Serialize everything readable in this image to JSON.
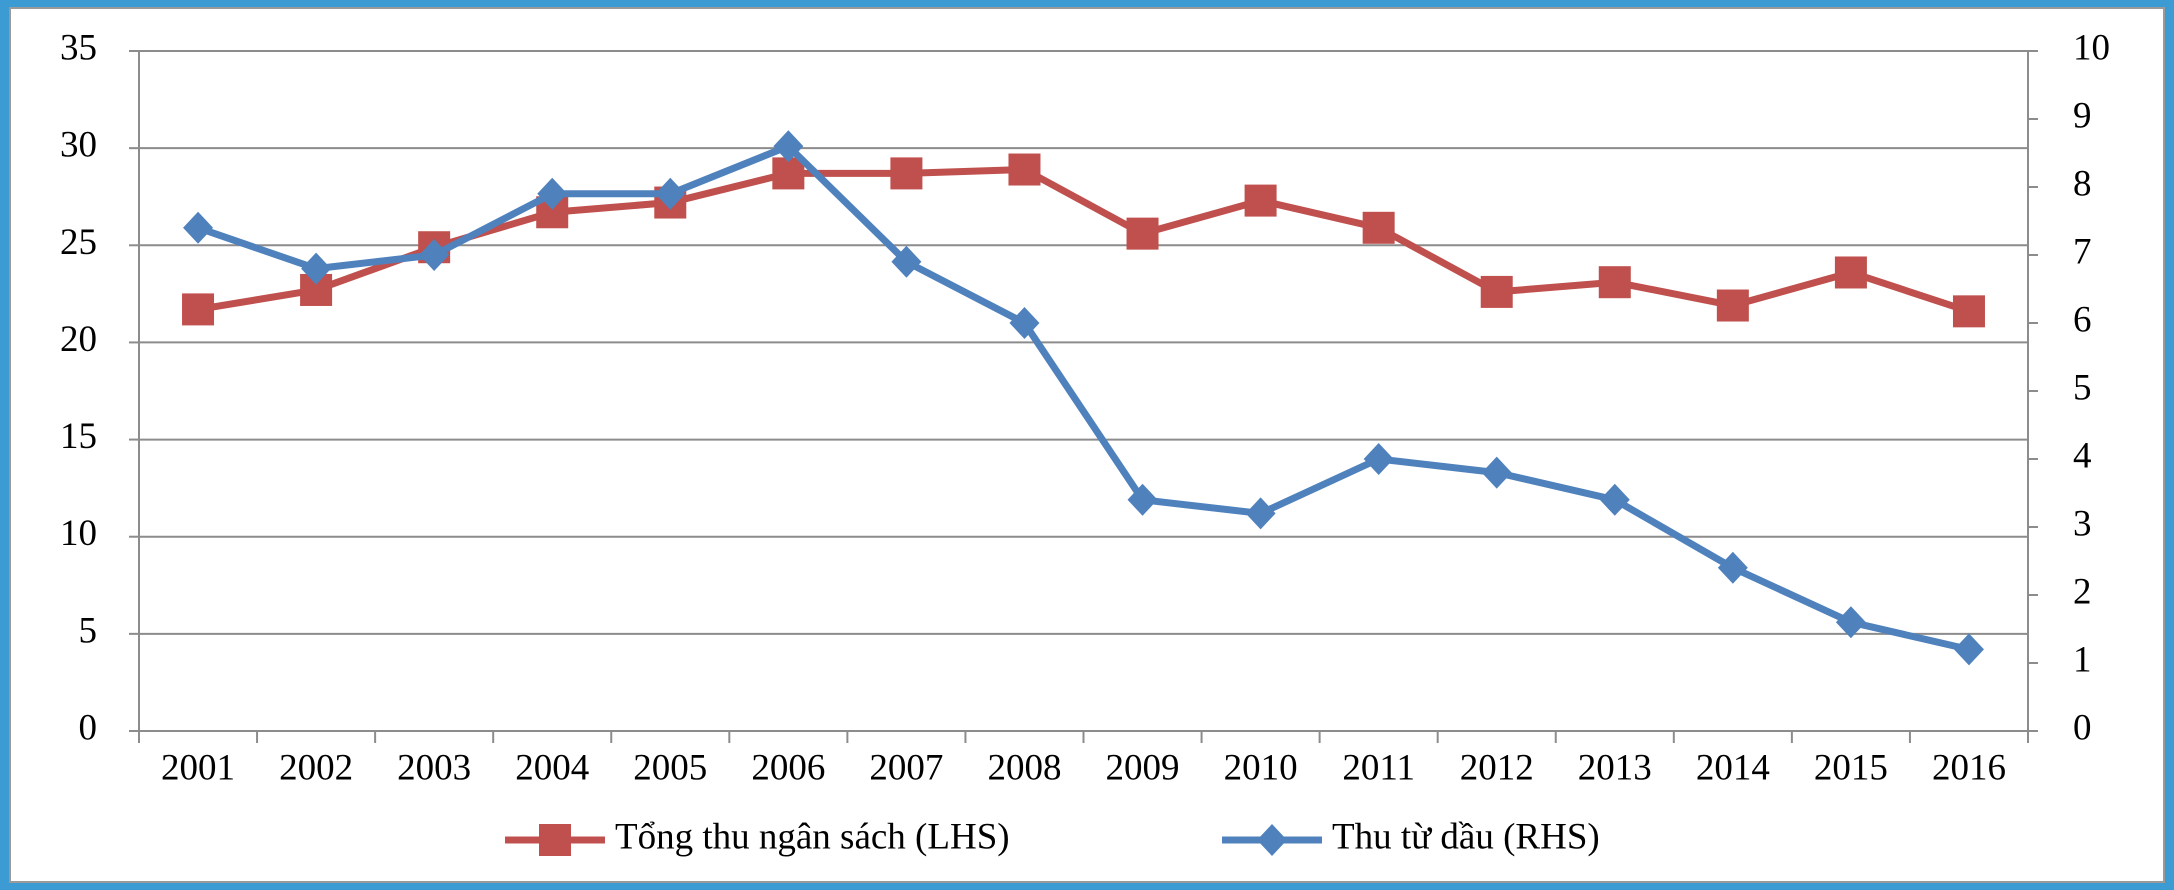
{
  "chart_data": {
    "type": "line",
    "categories": [
      "2001",
      "2002",
      "2003",
      "2004",
      "2005",
      "2006",
      "2007",
      "2008",
      "2009",
      "2010",
      "2011",
      "2012",
      "2013",
      "2014",
      "2015",
      "2016"
    ],
    "series": [
      {
        "name": "Tổng thu ngân sách (LHS)",
        "color": "#c0504d",
        "axis": "y",
        "values": [
          21.7,
          22.7,
          24.9,
          26.7,
          27.2,
          28.7,
          28.7,
          28.9,
          25.6,
          27.3,
          25.9,
          22.6,
          23.1,
          21.9,
          23.6,
          21.6
        ]
      },
      {
        "name": "Thu từ dầu (RHS)",
        "color": "#4f81bd",
        "axis": "y2",
        "values": [
          7.4,
          6.8,
          7.0,
          7.9,
          7.9,
          8.6,
          6.9,
          6.0,
          3.4,
          3.2,
          4.0,
          3.8,
          3.4,
          2.4,
          1.6,
          1.2
        ]
      }
    ],
    "ylim": [
      0,
      35
    ],
    "yticks": [
      0,
      5,
      10,
      15,
      20,
      25,
      30,
      35
    ],
    "y2lim": [
      0,
      10
    ],
    "y2ticks": [
      0,
      1,
      2,
      3,
      4,
      5,
      6,
      7,
      8,
      9,
      10
    ],
    "grid": true,
    "legend": "bottom"
  }
}
